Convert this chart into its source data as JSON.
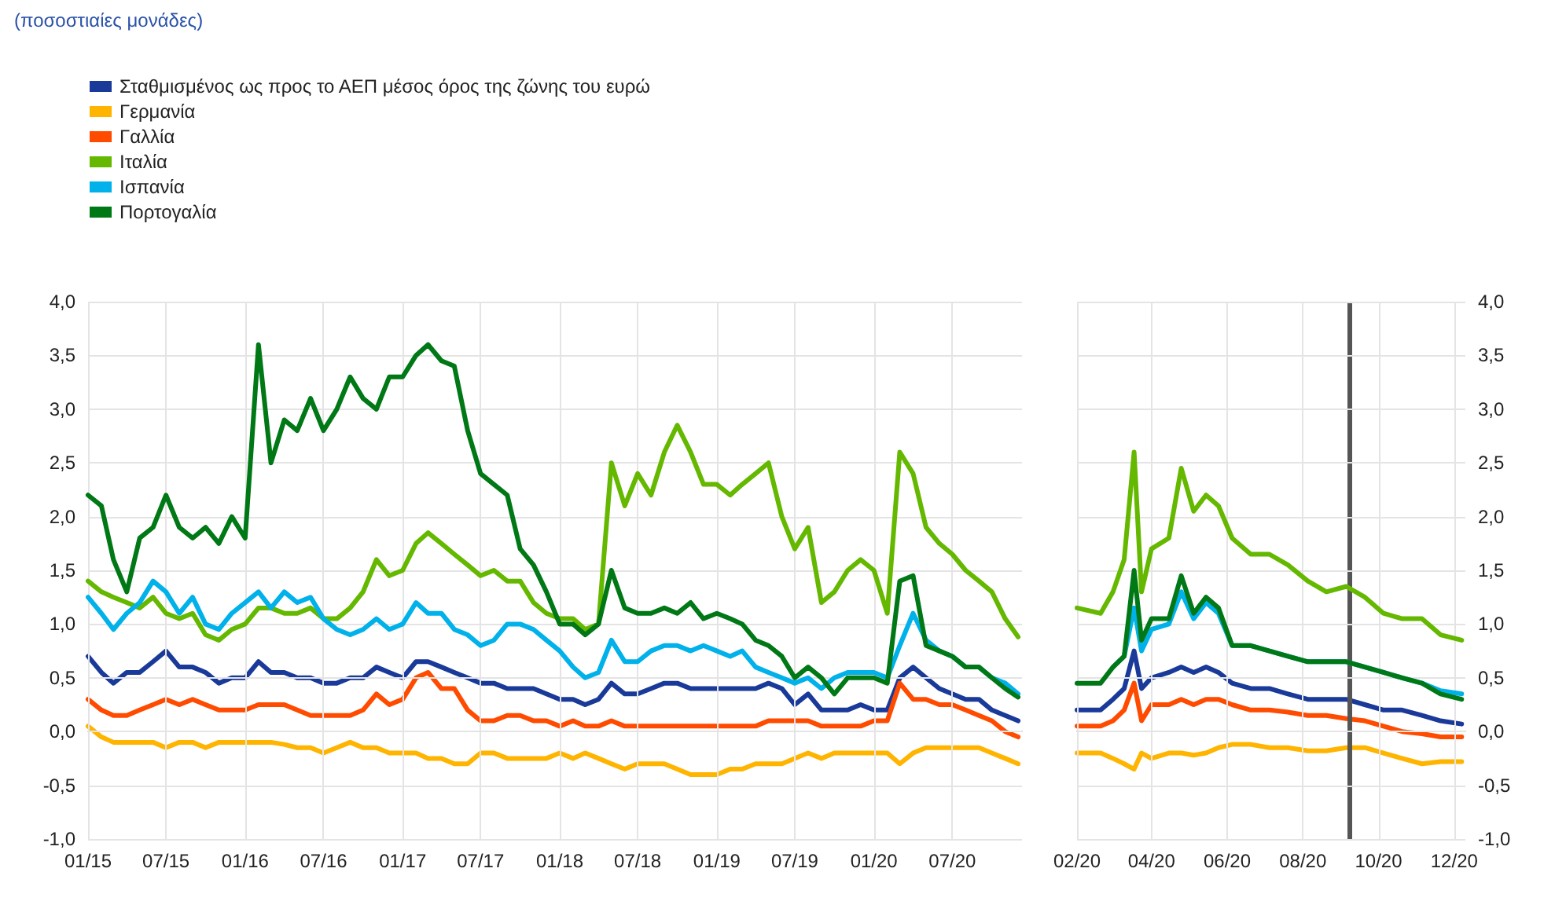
{
  "chart_data": [
    {
      "type": "line",
      "subtitle": "(ποσοστιαίες μονάδες)",
      "legend": "top left",
      "grid": true,
      "marker": "none",
      "line_style": "solid",
      "x": [
        "2015-01",
        "2015-02",
        "2015-03",
        "2015-04",
        "2015-05",
        "2015-06",
        "2015-07",
        "2015-08",
        "2015-09",
        "2015-10",
        "2015-11",
        "2015-12",
        "2016-01",
        "2016-02",
        "2016-03",
        "2016-04",
        "2016-05",
        "2016-06",
        "2016-07",
        "2016-08",
        "2016-09",
        "2016-10",
        "2016-11",
        "2016-12",
        "2017-01",
        "2017-02",
        "2017-03",
        "2017-04",
        "2017-05",
        "2017-06",
        "2017-07",
        "2017-08",
        "2017-09",
        "2017-10",
        "2017-11",
        "2017-12",
        "2018-01",
        "2018-02",
        "2018-03",
        "2018-04",
        "2018-05",
        "2018-06",
        "2018-07",
        "2018-08",
        "2018-09",
        "2018-10",
        "2018-11",
        "2018-12",
        "2019-01",
        "2019-02",
        "2019-03",
        "2019-04",
        "2019-05",
        "2019-06",
        "2019-07",
        "2019-08",
        "2019-09",
        "2019-10",
        "2019-11",
        "2019-12",
        "2020-01",
        "2020-02",
        "2020-03",
        "2020-04",
        "2020-05",
        "2020-06",
        "2020-07",
        "2020-08",
        "2020-09",
        "2020-10",
        "2020-11",
        "2020-12"
      ],
      "xlim": [
        "2015-01-01",
        "2020-12-10"
      ],
      "xticks": [
        {
          "value": "2015-01-01",
          "label": "01/15"
        },
        {
          "value": "2015-07-01",
          "label": "07/15"
        },
        {
          "value": "2016-01-01",
          "label": "01/16"
        },
        {
          "value": "2016-07-01",
          "label": "07/16"
        },
        {
          "value": "2017-01-01",
          "label": "01/17"
        },
        {
          "value": "2017-07-01",
          "label": "07/17"
        },
        {
          "value": "2018-01-01",
          "label": "01/18"
        },
        {
          "value": "2018-07-01",
          "label": "07/18"
        },
        {
          "value": "2019-01-01",
          "label": "01/19"
        },
        {
          "value": "2019-07-01",
          "label": "07/19"
        },
        {
          "value": "2020-01-01",
          "label": "01/20"
        },
        {
          "value": "2020-07-01",
          "label": "07/20"
        }
      ],
      "ylim": [
        -1,
        4
      ],
      "yticks": [
        {
          "value": -1,
          "label": "-1,0"
        },
        {
          "value": -0.5,
          "label": "-0,5"
        },
        {
          "value": 0,
          "label": "0,0"
        },
        {
          "value": 0.5,
          "label": "0,5"
        },
        {
          "value": 1,
          "label": "1,0"
        },
        {
          "value": 1.5,
          "label": "1,5"
        },
        {
          "value": 2,
          "label": "2,0"
        },
        {
          "value": 2.5,
          "label": "2,5"
        },
        {
          "value": 3,
          "label": "3,0"
        },
        {
          "value": 3.5,
          "label": "3,5"
        },
        {
          "value": 4,
          "label": "4,0"
        }
      ],
      "series": [
        {
          "name": "Σταθμισμένος ως προς το ΑΕΠ μέσος όρος της ζώνης του ευρώ",
          "color": "#1a3a9a",
          "values": [
            0.7,
            0.55,
            0.45,
            0.55,
            0.55,
            0.65,
            0.75,
            0.6,
            0.6,
            0.55,
            0.45,
            0.5,
            0.5,
            0.65,
            0.55,
            0.55,
            0.5,
            0.5,
            0.45,
            0.45,
            0.5,
            0.5,
            0.6,
            0.55,
            0.5,
            0.65,
            0.65,
            0.6,
            0.55,
            0.5,
            0.45,
            0.45,
            0.4,
            0.4,
            0.4,
            0.35,
            0.3,
            0.3,
            0.25,
            0.3,
            0.45,
            0.35,
            0.35,
            0.4,
            0.45,
            0.45,
            0.4,
            0.4,
            0.4,
            0.4,
            0.4,
            0.4,
            0.45,
            0.4,
            0.25,
            0.35,
            0.2,
            0.2,
            0.2,
            0.25,
            0.2,
            0.2,
            0.5,
            0.6,
            0.5,
            0.4,
            0.35,
            0.3,
            0.3,
            0.2,
            0.15,
            0.1
          ]
        },
        {
          "name": "Γερμανία",
          "color": "#ffb400",
          "values": [
            0.05,
            -0.05,
            -0.1,
            -0.1,
            -0.1,
            -0.1,
            -0.15,
            -0.1,
            -0.1,
            -0.15,
            -0.1,
            -0.1,
            -0.1,
            -0.1,
            -0.1,
            -0.12,
            -0.15,
            -0.15,
            -0.2,
            -0.15,
            -0.1,
            -0.15,
            -0.15,
            -0.2,
            -0.2,
            -0.2,
            -0.25,
            -0.25,
            -0.3,
            -0.3,
            -0.2,
            -0.2,
            -0.25,
            -0.25,
            -0.25,
            -0.25,
            -0.2,
            -0.25,
            -0.2,
            -0.25,
            -0.3,
            -0.35,
            -0.3,
            -0.3,
            -0.3,
            -0.35,
            -0.4,
            -0.4,
            -0.4,
            -0.35,
            -0.35,
            -0.3,
            -0.3,
            -0.3,
            -0.25,
            -0.2,
            -0.25,
            -0.2,
            -0.2,
            -0.2,
            -0.2,
            -0.2,
            -0.3,
            -0.2,
            -0.15,
            -0.15,
            -0.15,
            -0.15,
            -0.15,
            -0.2,
            -0.25,
            -0.3
          ]
        },
        {
          "name": "Γαλλία",
          "color": "#ff4b00",
          "values": [
            0.3,
            0.2,
            0.15,
            0.15,
            0.2,
            0.25,
            0.3,
            0.25,
            0.3,
            0.25,
            0.2,
            0.2,
            0.2,
            0.25,
            0.25,
            0.25,
            0.2,
            0.15,
            0.15,
            0.15,
            0.15,
            0.2,
            0.35,
            0.25,
            0.3,
            0.5,
            0.55,
            0.4,
            0.4,
            0.2,
            0.1,
            0.1,
            0.15,
            0.15,
            0.1,
            0.1,
            0.05,
            0.1,
            0.05,
            0.05,
            0.1,
            0.05,
            0.05,
            0.05,
            0.05,
            0.05,
            0.05,
            0.05,
            0.05,
            0.05,
            0.05,
            0.05,
            0.1,
            0.1,
            0.1,
            0.1,
            0.05,
            0.05,
            0.05,
            0.05,
            0.1,
            0.1,
            0.45,
            0.3,
            0.3,
            0.25,
            0.25,
            0.2,
            0.15,
            0.1,
            0.0,
            -0.05
          ]
        },
        {
          "name": "Ιταλία",
          "color": "#65b800",
          "values": [
            1.4,
            1.3,
            1.25,
            1.2,
            1.15,
            1.25,
            1.1,
            1.05,
            1.1,
            0.9,
            0.85,
            0.95,
            1.0,
            1.15,
            1.15,
            1.1,
            1.1,
            1.15,
            1.05,
            1.05,
            1.15,
            1.3,
            1.6,
            1.45,
            1.5,
            1.75,
            1.85,
            1.75,
            1.65,
            1.55,
            1.45,
            1.5,
            1.4,
            1.4,
            1.2,
            1.1,
            1.05,
            1.05,
            0.95,
            1.0,
            2.5,
            2.1,
            2.4,
            2.2,
            2.6,
            2.85,
            2.6,
            2.3,
            2.3,
            2.2,
            2.3,
            2.4,
            2.5,
            2.0,
            1.7,
            1.9,
            1.2,
            1.3,
            1.5,
            1.6,
            1.5,
            1.1,
            2.6,
            2.4,
            1.9,
            1.75,
            1.65,
            1.5,
            1.4,
            1.3,
            1.05,
            0.88
          ]
        },
        {
          "name": "Ισπανία",
          "color": "#00b1ea",
          "values": [
            1.25,
            1.1,
            0.95,
            1.1,
            1.2,
            1.4,
            1.3,
            1.1,
            1.25,
            1.0,
            0.95,
            1.1,
            1.2,
            1.3,
            1.15,
            1.3,
            1.2,
            1.25,
            1.05,
            0.95,
            0.9,
            0.95,
            1.05,
            0.95,
            1.0,
            1.2,
            1.1,
            1.1,
            0.95,
            0.9,
            0.8,
            0.85,
            1.0,
            1.0,
            0.95,
            0.85,
            0.75,
            0.6,
            0.5,
            0.55,
            0.85,
            0.65,
            0.65,
            0.75,
            0.8,
            0.8,
            0.75,
            0.8,
            0.75,
            0.7,
            0.75,
            0.6,
            0.55,
            0.5,
            0.45,
            0.5,
            0.4,
            0.5,
            0.55,
            0.55,
            0.55,
            0.5,
            0.8,
            1.1,
            0.85,
            0.75,
            0.7,
            0.6,
            0.6,
            0.5,
            0.45,
            0.35
          ]
        },
        {
          "name": "Πορτογαλία",
          "color": "#007816",
          "values": [
            2.2,
            2.1,
            1.6,
            1.3,
            1.8,
            1.9,
            2.2,
            1.9,
            1.8,
            1.9,
            1.75,
            2.0,
            1.8,
            3.6,
            2.5,
            2.9,
            2.8,
            3.1,
            2.8,
            3.0,
            3.3,
            3.1,
            3.0,
            3.3,
            3.3,
            3.5,
            3.6,
            3.45,
            3.4,
            2.8,
            2.4,
            2.3,
            2.2,
            1.7,
            1.55,
            1.3,
            1.0,
            1.0,
            0.9,
            1.0,
            1.5,
            1.15,
            1.1,
            1.1,
            1.15,
            1.1,
            1.2,
            1.05,
            1.1,
            1.05,
            1.0,
            0.85,
            0.8,
            0.7,
            0.5,
            0.6,
            0.5,
            0.35,
            0.5,
            0.5,
            0.5,
            0.45,
            1.4,
            1.45,
            0.8,
            0.75,
            0.7,
            0.6,
            0.6,
            0.5,
            0.4,
            0.32
          ]
        }
      ]
    },
    {
      "type": "line",
      "legend": false,
      "grid": true,
      "marker": "none",
      "line_style": "solid",
      "x": [
        "2020-02-01",
        "2020-02-20",
        "2020-03-01",
        "2020-03-10",
        "2020-03-18",
        "2020-03-24",
        "2020-04-01",
        "2020-04-15",
        "2020-04-25",
        "2020-05-05",
        "2020-05-15",
        "2020-05-25",
        "2020-06-05",
        "2020-06-20",
        "2020-07-05",
        "2020-07-20",
        "2020-08-05",
        "2020-08-20",
        "2020-09-05",
        "2020-09-20",
        "2020-10-05",
        "2020-10-20",
        "2020-11-05",
        "2020-11-20",
        "2020-12-07"
      ],
      "xlim": [
        "2020-02-01",
        "2020-12-10"
      ],
      "xticks": [
        {
          "value": "2020-02-01",
          "label": "02/20"
        },
        {
          "value": "2020-04-01",
          "label": "04/20"
        },
        {
          "value": "2020-06-01",
          "label": "06/20"
        },
        {
          "value": "2020-08-01",
          "label": "08/20"
        },
        {
          "value": "2020-10-01",
          "label": "10/20"
        },
        {
          "value": "2020-12-01",
          "label": "12/20"
        }
      ],
      "ylim": [
        -1,
        4
      ],
      "yticks": [
        {
          "value": -1,
          "label": "-1,0"
        },
        {
          "value": -0.5,
          "label": "-0,5"
        },
        {
          "value": 0,
          "label": "0,0"
        },
        {
          "value": 0.5,
          "label": "0,5"
        },
        {
          "value": 1,
          "label": "1,0"
        },
        {
          "value": 1.5,
          "label": "1,5"
        },
        {
          "value": 2,
          "label": "2,0"
        },
        {
          "value": 2.5,
          "label": "2,5"
        },
        {
          "value": 3,
          "label": "3,0"
        },
        {
          "value": 3.5,
          "label": "3,5"
        },
        {
          "value": 4,
          "label": "4,0"
        }
      ],
      "ref_lines": [
        {
          "axis": "x",
          "value": "2020-09-08",
          "color": "#555555"
        }
      ],
      "series": [
        {
          "color": "#1a3a9a",
          "values": [
            0.2,
            0.2,
            0.3,
            0.4,
            0.75,
            0.4,
            0.5,
            0.55,
            0.6,
            0.55,
            0.6,
            0.55,
            0.45,
            0.4,
            0.4,
            0.35,
            0.3,
            0.3,
            0.3,
            0.25,
            0.2,
            0.2,
            0.15,
            0.1,
            0.07
          ]
        },
        {
          "color": "#ffb400",
          "values": [
            -0.2,
            -0.2,
            -0.25,
            -0.3,
            -0.35,
            -0.2,
            -0.25,
            -0.2,
            -0.2,
            -0.22,
            -0.2,
            -0.15,
            -0.12,
            -0.12,
            -0.15,
            -0.15,
            -0.18,
            -0.18,
            -0.15,
            -0.15,
            -0.2,
            -0.25,
            -0.3,
            -0.28,
            -0.28
          ]
        },
        {
          "color": "#ff4b00",
          "values": [
            0.05,
            0.05,
            0.1,
            0.2,
            0.45,
            0.1,
            0.25,
            0.25,
            0.3,
            0.25,
            0.3,
            0.3,
            0.25,
            0.2,
            0.2,
            0.18,
            0.15,
            0.15,
            0.12,
            0.1,
            0.05,
            0.0,
            -0.02,
            -0.05,
            -0.05
          ]
        },
        {
          "color": "#65b800",
          "values": [
            1.15,
            1.1,
            1.3,
            1.6,
            2.6,
            1.3,
            1.7,
            1.8,
            2.45,
            2.05,
            2.2,
            2.1,
            1.8,
            1.65,
            1.65,
            1.55,
            1.4,
            1.3,
            1.35,
            1.25,
            1.1,
            1.05,
            1.05,
            0.9,
            0.85
          ]
        },
        {
          "color": "#00b1ea",
          "values": [
            null,
            null,
            0.6,
            0.7,
            1.15,
            0.75,
            0.95,
            1.0,
            1.3,
            1.05,
            1.2,
            1.1,
            0.8,
            0.8,
            0.75,
            0.7,
            0.65,
            0.65,
            0.65,
            0.6,
            0.55,
            0.5,
            0.45,
            0.38,
            0.35
          ]
        },
        {
          "color": "#007816",
          "values": [
            0.45,
            0.45,
            0.6,
            0.7,
            1.5,
            0.85,
            1.05,
            1.05,
            1.45,
            1.1,
            1.25,
            1.15,
            0.8,
            0.8,
            0.75,
            0.7,
            0.65,
            0.65,
            0.65,
            0.6,
            0.55,
            0.5,
            0.45,
            0.35,
            0.3
          ]
        }
      ]
    }
  ]
}
